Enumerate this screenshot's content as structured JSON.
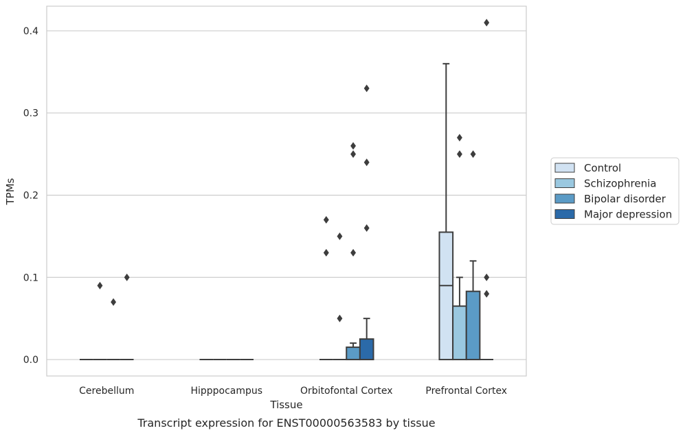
{
  "chart_data": {
    "type": "box",
    "caption": "Transcript expression for ENST00000563583 by tissue",
    "xlabel": "Tissue",
    "ylabel": "TPMs",
    "ylim": [
      -0.02,
      0.43
    ],
    "yticks": [
      0.0,
      0.1,
      0.2,
      0.3,
      0.4
    ],
    "ytick_labels": [
      "0.0",
      "0.1",
      "0.2",
      "0.3",
      "0.4"
    ],
    "grid": "horizontal",
    "legend_position": "right",
    "categories": [
      "Cerebellum",
      "Hipppocampus",
      "Orbitofontal Cortex",
      "Prefrontal Cortex"
    ],
    "series": [
      {
        "name": "Control",
        "color": "#d1e2f2",
        "boxes": [
          {
            "q1": 0,
            "median": 0,
            "q3": 0,
            "whisker_low": 0,
            "whisker_high": 0,
            "outliers": []
          },
          {
            "q1": 0,
            "median": 0,
            "q3": 0,
            "whisker_low": 0,
            "whisker_high": 0,
            "outliers": []
          },
          {
            "q1": 0,
            "median": 0,
            "q3": 0,
            "whisker_low": 0,
            "whisker_high": 0,
            "outliers": [
              0.13,
              0.17
            ]
          },
          {
            "q1": 0,
            "median": 0.09,
            "q3": 0.155,
            "whisker_low": 0,
            "whisker_high": 0.36,
            "outliers": []
          }
        ]
      },
      {
        "name": "Schizophrenia",
        "color": "#9ac8e0",
        "boxes": [
          {
            "q1": 0,
            "median": 0,
            "q3": 0,
            "whisker_low": 0,
            "whisker_high": 0,
            "outliers": [
              0.09
            ]
          },
          {
            "q1": 0,
            "median": 0,
            "q3": 0,
            "whisker_low": 0,
            "whisker_high": 0,
            "outliers": []
          },
          {
            "q1": 0,
            "median": 0,
            "q3": 0,
            "whisker_low": 0,
            "whisker_high": 0,
            "outliers": [
              0.05,
              0.15
            ]
          },
          {
            "q1": 0,
            "median": 0,
            "q3": 0.065,
            "whisker_low": 0,
            "whisker_high": 0.1,
            "outliers": [
              0.25,
              0.27
            ]
          }
        ]
      },
      {
        "name": "Bipolar disorder",
        "color": "#5b9bc6",
        "boxes": [
          {
            "q1": 0,
            "median": 0,
            "q3": 0,
            "whisker_low": 0,
            "whisker_high": 0,
            "outliers": [
              0.07
            ]
          },
          {
            "q1": 0,
            "median": 0,
            "q3": 0,
            "whisker_low": 0,
            "whisker_high": 0,
            "outliers": []
          },
          {
            "q1": 0,
            "median": 0,
            "q3": 0.015,
            "whisker_low": 0,
            "whisker_high": 0.02,
            "outliers": [
              0.13,
              0.25,
              0.26
            ]
          },
          {
            "q1": 0,
            "median": 0,
            "q3": 0.083,
            "whisker_low": 0,
            "whisker_high": 0.12,
            "outliers": [
              0.25
            ]
          }
        ]
      },
      {
        "name": "Major depression",
        "color": "#2b6aa9",
        "boxes": [
          {
            "q1": 0,
            "median": 0,
            "q3": 0,
            "whisker_low": 0,
            "whisker_high": 0,
            "outliers": [
              0.1
            ]
          },
          {
            "q1": 0,
            "median": 0,
            "q3": 0,
            "whisker_low": 0,
            "whisker_high": 0,
            "outliers": []
          },
          {
            "q1": 0,
            "median": 0,
            "q3": 0.025,
            "whisker_low": 0,
            "whisker_high": 0.05,
            "outliers": [
              0.16,
              0.24,
              0.33
            ]
          },
          {
            "q1": 0,
            "median": 0,
            "q3": 0,
            "whisker_low": 0,
            "whisker_high": 0,
            "outliers": [
              0.08,
              0.1,
              0.41
            ]
          }
        ]
      }
    ]
  }
}
